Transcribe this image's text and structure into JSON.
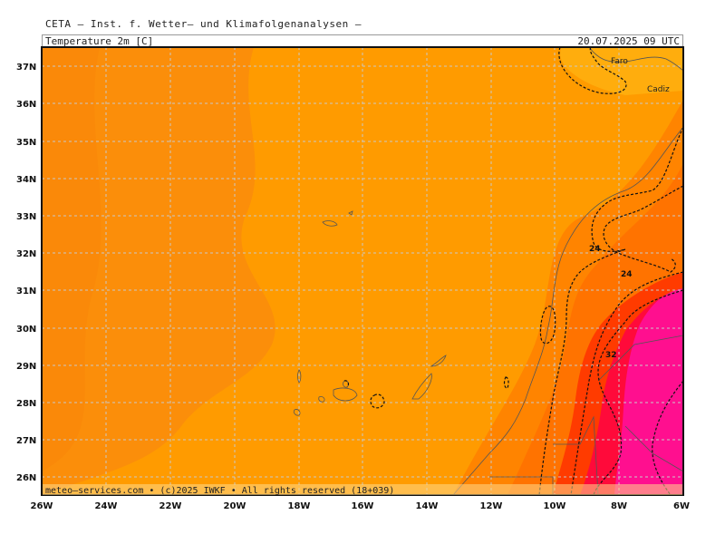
{
  "header": {
    "organization": "CETA — Inst. f. Wetter— und Klimafolgenanalysen —",
    "parameter": "Temperature_2m_[C]",
    "valid_time": "20.07.2025  09 UTC"
  },
  "map": {
    "region": "Eastern Atlantic / Canary Islands / Morocco coast",
    "lon_range": [
      -26,
      -6
    ],
    "lat_range": [
      25.6,
      37.5
    ],
    "lat_ticks": [
      "37N",
      "36N",
      "35N",
      "34N",
      "33N",
      "32N",
      "31N",
      "30N",
      "29N",
      "28N",
      "27N",
      "26N"
    ],
    "lon_ticks": [
      "26W",
      "24W",
      "22W",
      "20W",
      "18W",
      "16W",
      "14W",
      "12W",
      "10W",
      "8W",
      "6W"
    ],
    "contour_labels": [
      "24",
      "24",
      "32"
    ],
    "cities": [
      "Faro",
      "Cadiz"
    ],
    "credit": "meteo—services.com • (c)2025 IWKF • All rights reserved (18+039)",
    "colors": {
      "sea_base": "#ff9b00",
      "sea_dark": "#fb8e0a",
      "land_warm": "#ff7a00",
      "hot": "#ff3b00",
      "very_hot": "#ff0a3a",
      "extreme": "#ff0f8f",
      "cool": "#ffad0d",
      "grid": "#c8c8c8",
      "coast": "#555555"
    }
  }
}
